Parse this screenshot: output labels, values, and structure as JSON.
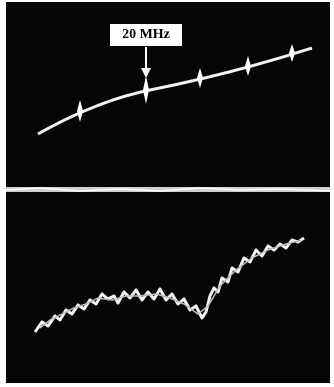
{
  "annotation": {
    "label": "20 MHz"
  }
}
